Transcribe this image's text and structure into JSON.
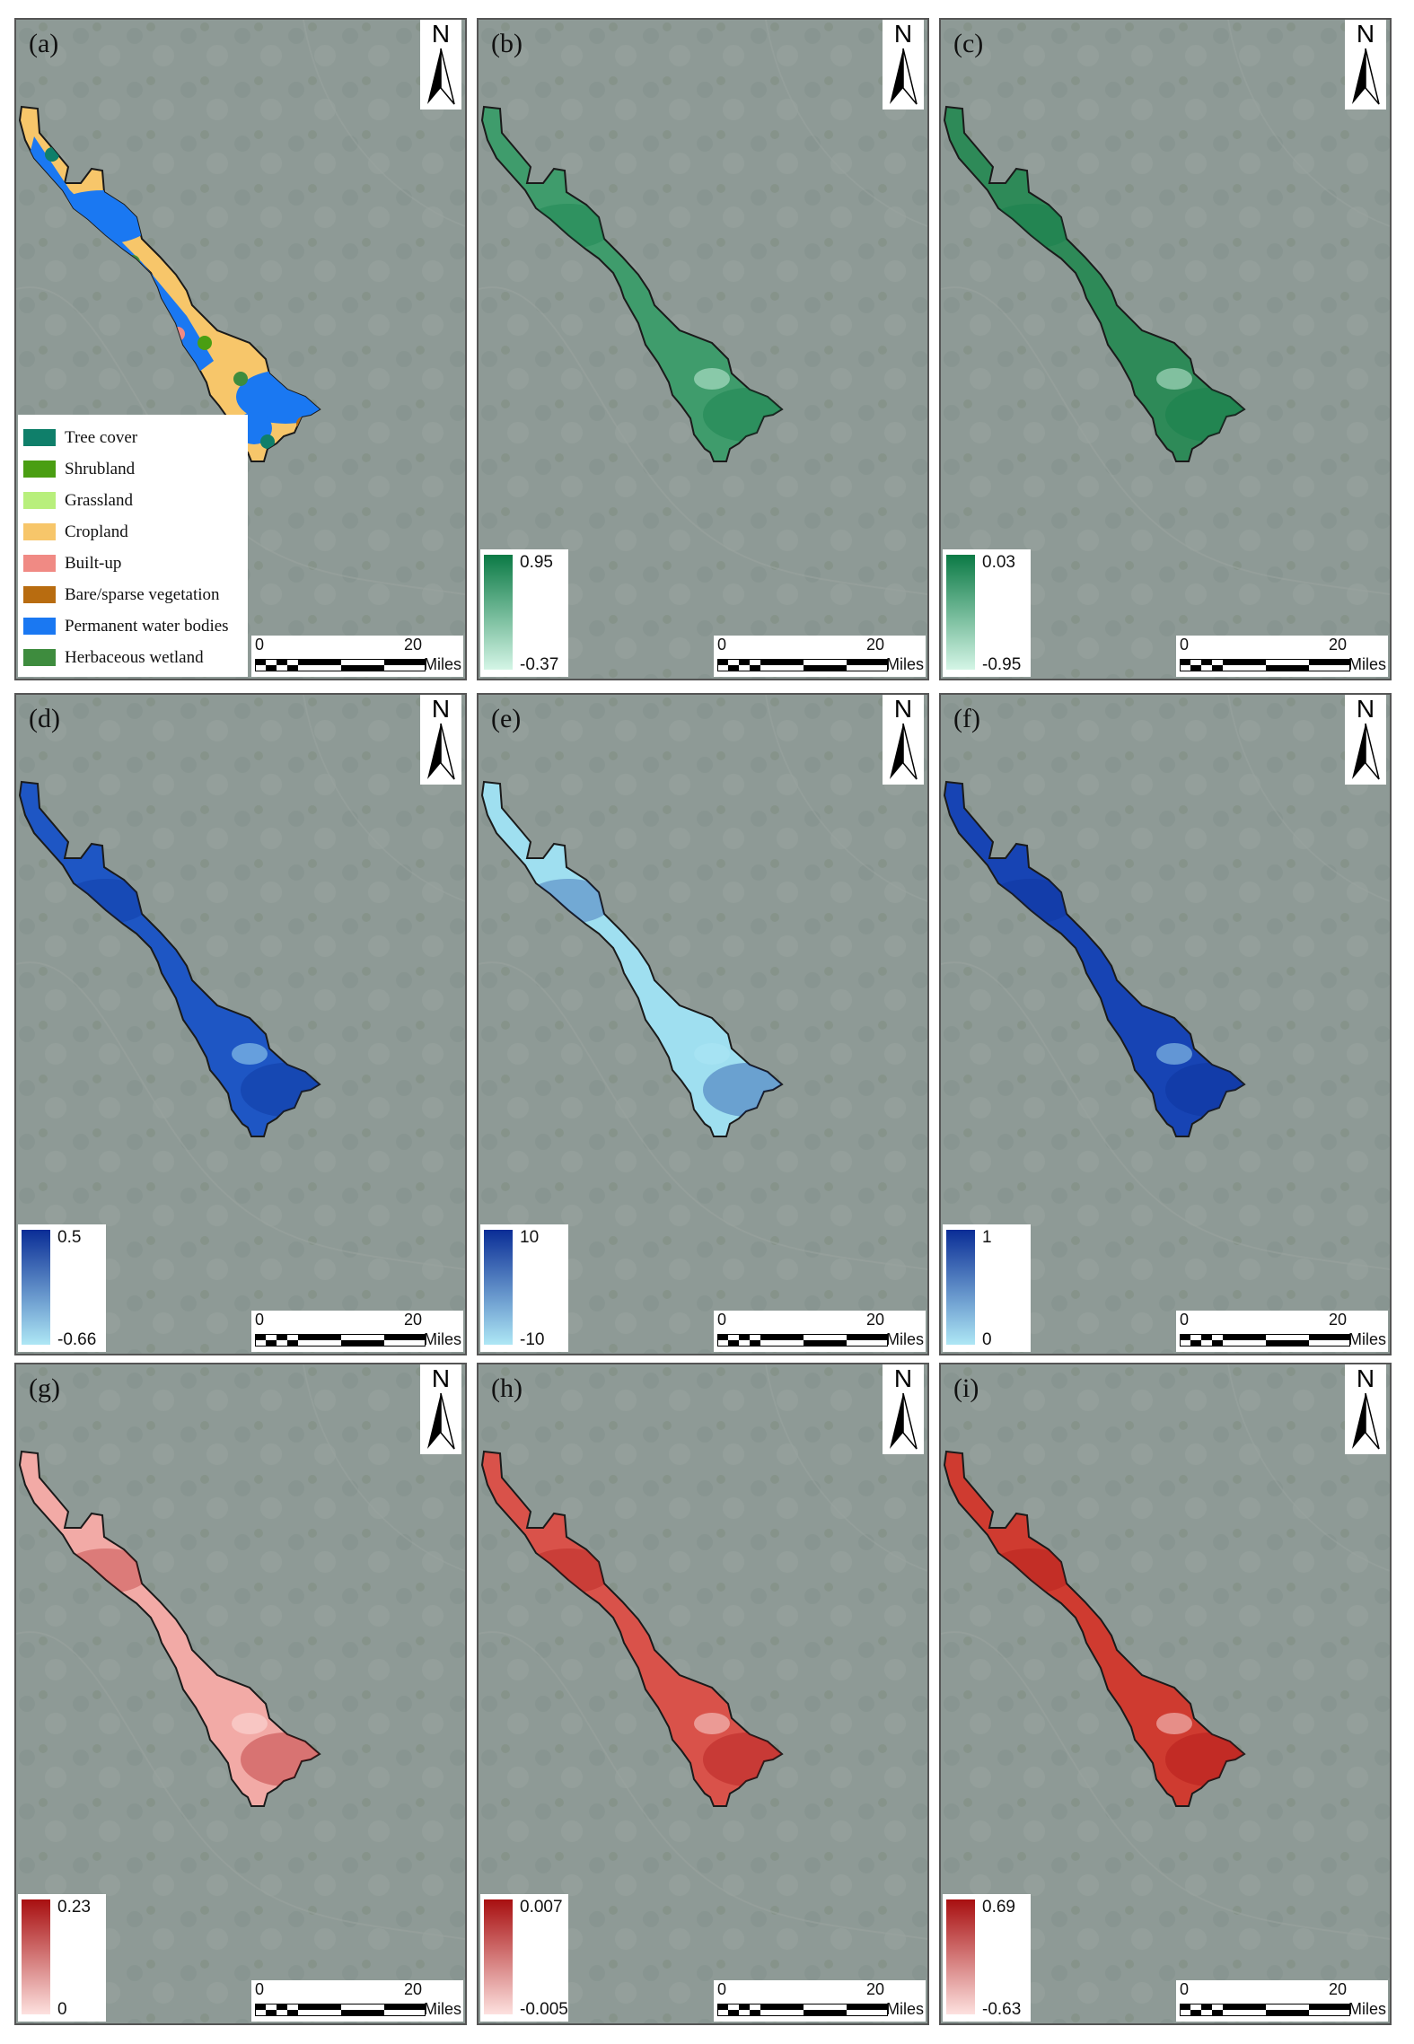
{
  "north_label": "N",
  "scale_bar": {
    "start": "0",
    "end": "20",
    "unit": "Miles"
  },
  "colors": {
    "basemap": "#8e9a96",
    "outline": "#1a1a1a"
  },
  "landcover_legend": [
    {
      "label": "Tree cover",
      "color": "#0f7f6a"
    },
    {
      "label": "Shrubland",
      "color": "#4a9e12"
    },
    {
      "label": "Grassland",
      "color": "#b8ef7c"
    },
    {
      "label": "Cropland",
      "color": "#f7c66a"
    },
    {
      "label": "Built-up",
      "color": "#f08a84"
    },
    {
      "label": "Bare/sparse vegetation",
      "color": "#b86c10"
    },
    {
      "label": "Permanent water bodies",
      "color": "#1a78f2"
    },
    {
      "label": "Herbaceous wetland",
      "color": "#3e8c3e"
    }
  ],
  "panels": [
    {
      "label": "(a)",
      "kind": "landcover"
    },
    {
      "label": "(b)",
      "kind": "ramp",
      "max": "0.95",
      "min": "-0.37",
      "color_high": "#0b7a45",
      "color_low": "#d4f5e6",
      "fill_color": "#3f9c6c"
    },
    {
      "label": "(c)",
      "kind": "ramp",
      "max": "0.03",
      "min": "-0.95",
      "color_high": "#0b7a45",
      "color_low": "#d4f5e6",
      "fill_color": "#2e8a58"
    },
    {
      "label": "(d)",
      "kind": "ramp",
      "max": "0.5",
      "min": "-0.66",
      "color_high": "#0a2d96",
      "color_low": "#aee7f5",
      "fill_color": "#1e56c4"
    },
    {
      "label": "(e)",
      "kind": "ramp",
      "max": "10",
      "min": "-10",
      "color_high": "#0a2d96",
      "color_low": "#aee7f5",
      "fill_color": "#9fdff0"
    },
    {
      "label": "(f)",
      "kind": "ramp",
      "max": "1",
      "min": "0",
      "color_high": "#0a2d96",
      "color_low": "#aee7f5",
      "fill_color": "#1744b4"
    },
    {
      "label": "(g)",
      "kind": "ramp",
      "max": "0.23",
      "min": "0",
      "color_high": "#a80f10",
      "color_low": "#fde1df",
      "fill_color": "#f2aaa6"
    },
    {
      "label": "(h)",
      "kind": "ramp",
      "max": "0.007",
      "min": "-0.005",
      "color_high": "#a80f10",
      "color_low": "#fde1df",
      "fill_color": "#d9524a"
    },
    {
      "label": "(i)",
      "kind": "ramp",
      "max": "0.69",
      "min": "-0.63",
      "color_high": "#a80f10",
      "color_low": "#fde1df",
      "fill_color": "#cf3b30"
    }
  ]
}
